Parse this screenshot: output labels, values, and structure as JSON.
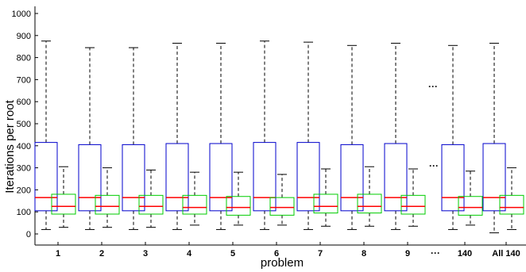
{
  "chart_data": {
    "type": "box",
    "xlabel": "problem",
    "ylabel": "Iterations per root",
    "ylim": [
      0,
      1000
    ],
    "yticks": [
      0,
      100,
      200,
      300,
      400,
      500,
      600,
      700,
      800,
      900,
      1000
    ],
    "categories": [
      "1",
      "2",
      "3",
      "4",
      "5",
      "6",
      "7",
      "8",
      "9",
      "···",
      "140",
      "All 140"
    ],
    "ellipsis_mark": "···",
    "colors": {
      "series_a_box": "#0000cc",
      "series_b_box": "#00cc00",
      "median": "#ff0000",
      "whisker": "#000000"
    },
    "series": [
      {
        "color_key": "series_a_box",
        "boxes": [
          {
            "category": "1",
            "whisker_low": 20,
            "q1": 105,
            "median": 165,
            "q3": 415,
            "whisker_high": 875
          },
          {
            "category": "2",
            "whisker_low": 20,
            "q1": 105,
            "median": 165,
            "q3": 405,
            "whisker_high": 845
          },
          {
            "category": "3",
            "whisker_low": 20,
            "q1": 105,
            "median": 165,
            "q3": 405,
            "whisker_high": 845
          },
          {
            "category": "4",
            "whisker_low": 20,
            "q1": 105,
            "median": 165,
            "q3": 410,
            "whisker_high": 865
          },
          {
            "category": "5",
            "whisker_low": 20,
            "q1": 105,
            "median": 165,
            "q3": 410,
            "whisker_high": 865
          },
          {
            "category": "6",
            "whisker_low": 20,
            "q1": 105,
            "median": 165,
            "q3": 415,
            "whisker_high": 875
          },
          {
            "category": "7",
            "whisker_low": 20,
            "q1": 105,
            "median": 165,
            "q3": 415,
            "whisker_high": 870
          },
          {
            "category": "8",
            "whisker_low": 20,
            "q1": 105,
            "median": 165,
            "q3": 405,
            "whisker_high": 855
          },
          {
            "category": "9",
            "whisker_low": 20,
            "q1": 105,
            "median": 165,
            "q3": 410,
            "whisker_high": 865
          },
          {
            "category": "140",
            "whisker_low": 20,
            "q1": 105,
            "median": 165,
            "q3": 405,
            "whisker_high": 855
          },
          {
            "category": "All 140",
            "whisker_low": 5,
            "q1": 105,
            "median": 165,
            "q3": 410,
            "whisker_high": 865
          }
        ]
      },
      {
        "color_key": "series_b_box",
        "boxes": [
          {
            "category": "1",
            "whisker_low": 30,
            "q1": 90,
            "median": 125,
            "q3": 180,
            "whisker_high": 305
          },
          {
            "category": "2",
            "whisker_low": 30,
            "q1": 90,
            "median": 125,
            "q3": 175,
            "whisker_high": 300
          },
          {
            "category": "3",
            "whisker_low": 30,
            "q1": 90,
            "median": 125,
            "q3": 175,
            "whisker_high": 290
          },
          {
            "category": "4",
            "whisker_low": 40,
            "q1": 90,
            "median": 120,
            "q3": 175,
            "whisker_high": 280
          },
          {
            "category": "5",
            "whisker_low": 40,
            "q1": 85,
            "median": 120,
            "q3": 170,
            "whisker_high": 280
          },
          {
            "category": "6",
            "whisker_low": 40,
            "q1": 85,
            "median": 120,
            "q3": 165,
            "whisker_high": 270
          },
          {
            "category": "7",
            "whisker_low": 35,
            "q1": 95,
            "median": 125,
            "q3": 180,
            "whisker_high": 295
          },
          {
            "category": "8",
            "whisker_low": 35,
            "q1": 95,
            "median": 125,
            "q3": 180,
            "whisker_high": 305
          },
          {
            "category": "9",
            "whisker_low": 35,
            "q1": 90,
            "median": 125,
            "q3": 175,
            "whisker_high": 295
          },
          {
            "category": "140",
            "whisker_low": 40,
            "q1": 85,
            "median": 120,
            "q3": 170,
            "whisker_high": 285
          },
          {
            "category": "All 140",
            "whisker_low": 20,
            "q1": 90,
            "median": 120,
            "q3": 175,
            "whisker_high": 300
          }
        ]
      }
    ]
  }
}
